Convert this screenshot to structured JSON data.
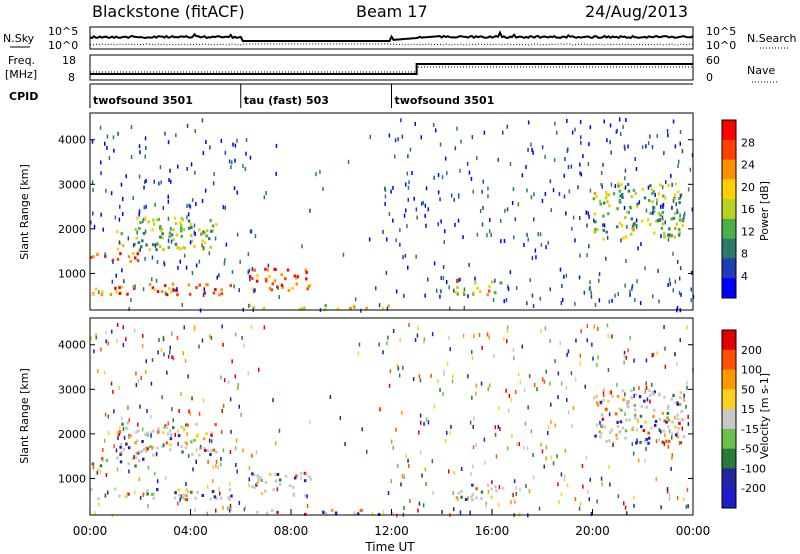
{
  "header": {
    "station": "Blackstone (fitACF)",
    "beam": "Beam 17",
    "date": "24/Aug/2013"
  },
  "noise_panel": {
    "left_label": "N.Sky",
    "right_label": "N.Search",
    "tick_top": "10^5",
    "tick_bottom": "10^0"
  },
  "freq_panel": {
    "left_label_1": "Freq.",
    "left_label_2": "[MHz]",
    "right_label": "Nave",
    "left_ticks": [
      "18",
      "8"
    ],
    "right_ticks": [
      "60",
      "0"
    ]
  },
  "cpid": {
    "label": "CPID",
    "segments": [
      {
        "name": "twofsound 3501",
        "start_hour": 0,
        "end_hour": 6
      },
      {
        "name": "tau (fast) 503",
        "start_hour": 6,
        "end_hour": 12
      },
      {
        "name": "twofsound 3501",
        "start_hour": 12,
        "end_hour": 24
      }
    ]
  },
  "colors": {
    "power": [
      "#0000ff",
      "#1e3cb4",
      "#2a7a6a",
      "#4ab04a",
      "#b8d020",
      "#ffd000",
      "#ff9000",
      "#ff4000",
      "#ff0000"
    ],
    "velocity": [
      "#1c1ccc",
      "#2424a0",
      "#2a7a3a",
      "#6cc04c",
      "#c8c8c8",
      "#ffd020",
      "#ff9800",
      "#ff5000",
      "#e00000"
    ]
  },
  "chart_data": [
    {
      "type": "heatmap",
      "name": "Power",
      "ylabel": "Slant Range [km]",
      "xlim_hours": [
        0,
        24
      ],
      "ylim_km": [
        180,
        4600
      ],
      "yticks": [
        1000,
        2000,
        3000,
        4000
      ],
      "colorbar": {
        "label": "Power [dB]",
        "ticks": [
          "28",
          "24",
          "20",
          "16",
          "12",
          "8",
          "4"
        ]
      },
      "echo_regions": [
        {
          "t0": 0.0,
          "t1": 2.2,
          "r0": 1300,
          "r1": 1500,
          "level": 0.9
        },
        {
          "t0": 0.0,
          "t1": 5.8,
          "r0": 550,
          "r1": 800,
          "level": 0.85
        },
        {
          "t0": 1.0,
          "t1": 5.0,
          "r0": 1550,
          "r1": 2300,
          "level": 0.45
        },
        {
          "t0": 6.3,
          "t1": 8.8,
          "r0": 650,
          "r1": 1150,
          "level": 0.85
        },
        {
          "t0": 14.5,
          "t1": 16.5,
          "r0": 550,
          "r1": 900,
          "level": 0.65
        },
        {
          "t0": 20.0,
          "t1": 23.6,
          "r0": 1800,
          "r1": 3050,
          "level": 0.45
        },
        {
          "t0": 6.3,
          "t1": 12.0,
          "r0": 220,
          "r1": 320,
          "level": 0.5
        }
      ]
    },
    {
      "type": "heatmap",
      "name": "Velocity",
      "ylabel": "Slant Range [km]",
      "xlabel": "Time UT",
      "xlim_hours": [
        0,
        24
      ],
      "ylim_km": [
        180,
        4600
      ],
      "yticks": [
        1000,
        2000,
        3000,
        4000
      ],
      "xticks": [
        "00:00",
        "04:00",
        "08:00",
        "12:00",
        "16:00",
        "20:00",
        "00:00"
      ],
      "colorbar": {
        "label": "Velocity [m s-1]",
        "ticks": [
          "200",
          "100",
          "50",
          "15",
          "-15",
          "-50",
          "-100",
          "-200"
        ]
      }
    }
  ]
}
